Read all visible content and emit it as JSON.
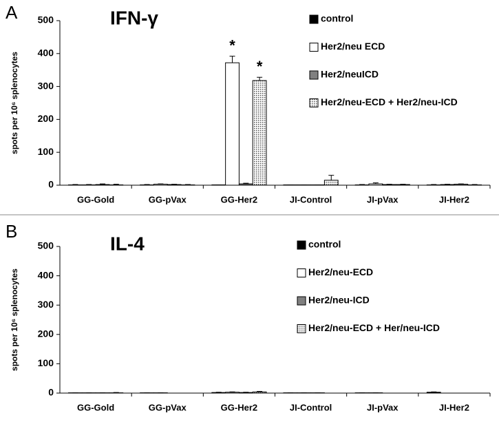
{
  "chart_data": [
    {
      "type": "bar",
      "panel_label": "A",
      "title": "IFN-γ",
      "y_label": "spots per 10⁶ splenocytes",
      "categories": [
        "GG-Gold",
        "GG-pVax",
        "GG-Her2",
        "JI-Control",
        "JI-pVax",
        "JI-Her2"
      ],
      "series": [
        {
          "name": "control",
          "color": "#000000",
          "values": [
            1,
            1,
            1,
            1,
            1,
            1
          ],
          "errors": [
            1,
            1,
            0,
            0,
            1,
            1
          ]
        },
        {
          "name": "Her2/neu ECD",
          "color": "#ffffff",
          "values": [
            1,
            3,
            372,
            1,
            4,
            2
          ],
          "errors": [
            1,
            1,
            20,
            0,
            3,
            1
          ]
        },
        {
          "name": "Her2/neuICD",
          "color": "#808080",
          "values": [
            2,
            2,
            4,
            1,
            2,
            3
          ],
          "errors": [
            2,
            1,
            2,
            0,
            1,
            1
          ]
        },
        {
          "name": "Her2/neu-ECD + Her2/neu-ICD",
          "color": "#b0b0b0",
          "pattern": "dots",
          "values": [
            1,
            1,
            318,
            15,
            2,
            1
          ],
          "errors": [
            2,
            1,
            10,
            15,
            1,
            1
          ]
        }
      ],
      "annotations": [
        {
          "text": "*",
          "category": "GG-Her2",
          "series": "Her2/neu ECD"
        },
        {
          "text": "*",
          "category": "GG-Her2",
          "series": "Her2/neu-ECD + Her2/neu-ICD"
        }
      ],
      "ylim": [
        0,
        500
      ],
      "yticks": [
        0,
        100,
        200,
        300,
        400,
        500
      ],
      "legend": "upper right"
    },
    {
      "type": "bar",
      "panel_label": "B",
      "title": "IL-4",
      "y_label": "spots per 10⁶ splenocytes",
      "categories": [
        "GG-Gold",
        "GG-pVax",
        "GG-Her2",
        "JI-Control",
        "JI-pVax",
        "JI-Her2"
      ],
      "series": [
        {
          "name": "control",
          "color": "#000000",
          "values": [
            1,
            1,
            2,
            1,
            1,
            3
          ],
          "errors": [
            0,
            0,
            1,
            0,
            0,
            1
          ]
        },
        {
          "name": "Her2/neu-ECD",
          "color": "#ffffff",
          "values": [
            1,
            1,
            3,
            1,
            1,
            0
          ],
          "errors": [
            0,
            0,
            1,
            0,
            0,
            0
          ]
        },
        {
          "name": "Her2/neu-ICD",
          "color": "#808080",
          "values": [
            1,
            0,
            2,
            1,
            0,
            0
          ],
          "errors": [
            0,
            0,
            1,
            0,
            0,
            0
          ]
        },
        {
          "name": "Her2/neu-ECD + Her/neu-ICD",
          "color": "#b0b0b0",
          "pattern": "dots",
          "values": [
            1,
            0,
            4,
            0,
            0,
            0
          ],
          "errors": [
            1,
            0,
            2,
            0,
            0,
            0
          ]
        }
      ],
      "ylim": [
        0,
        500
      ],
      "yticks": [
        0,
        100,
        200,
        300,
        400,
        500
      ],
      "legend": "upper right"
    }
  ]
}
